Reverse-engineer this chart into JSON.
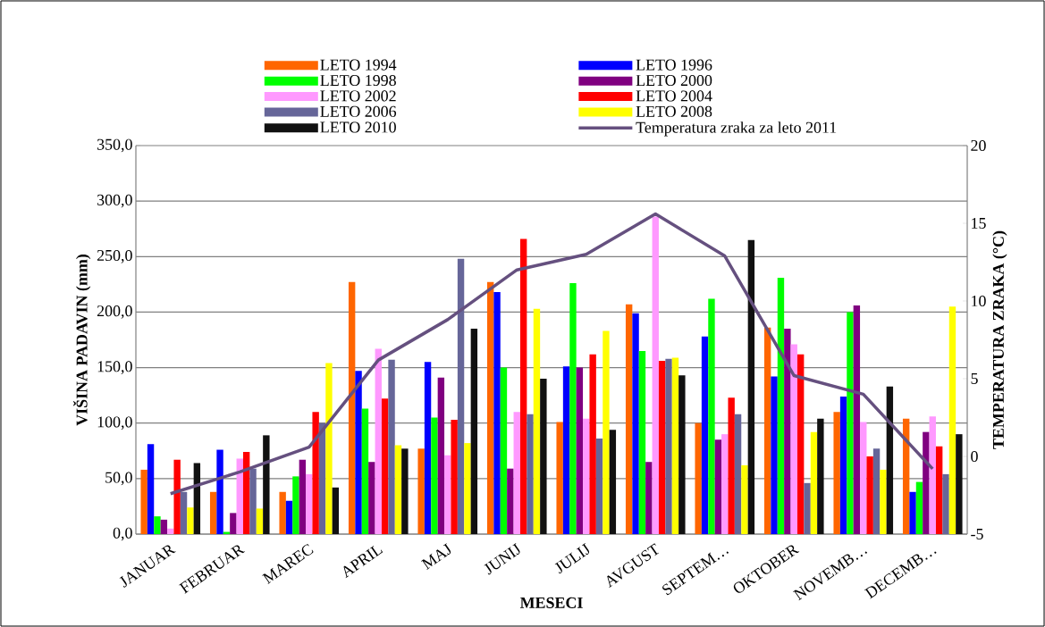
{
  "chart_data": {
    "type": "bar",
    "xlabel": "MESECI",
    "ylabel": "VIŠINA PADAVIN (mm)",
    "y2label": "TEMPERATURA ZRAKA (°C)",
    "categories": [
      "JANUAR",
      "FEBRUAR",
      "MAREC",
      "APRIL",
      "MAJ",
      "JUNIJ",
      "JULIJ",
      "AVGUST",
      "SEPTEM…",
      "OKTOBER",
      "NOVEMB…",
      "DECEMB…"
    ],
    "series": [
      {
        "name": "LETO 1994",
        "color": "#ff6600",
        "values": [
          58,
          38,
          38,
          227,
          77,
          227,
          101,
          207,
          100,
          186,
          110,
          104
        ]
      },
      {
        "name": "LETO 1996",
        "color": "#0000ff",
        "values": [
          81,
          76,
          30,
          147,
          155,
          218,
          151,
          199,
          178,
          142,
          124,
          38
        ]
      },
      {
        "name": "LETO 1998",
        "color": "#00ff00",
        "values": [
          16,
          2,
          52,
          113,
          105,
          150,
          226,
          165,
          212,
          231,
          200,
          47
        ]
      },
      {
        "name": "LETO 2000",
        "color": "#800080",
        "values": [
          13,
          19,
          67,
          65,
          141,
          59,
          150,
          65,
          85,
          185,
          206,
          92
        ]
      },
      {
        "name": "LETO 2002",
        "color": "#ff99ff",
        "values": [
          5,
          68,
          54,
          167,
          71,
          110,
          104,
          286,
          90,
          171,
          101,
          106
        ]
      },
      {
        "name": "LETO 2004",
        "color": "#ff0000",
        "values": [
          67,
          74,
          110,
          122,
          103,
          266,
          162,
          156,
          123,
          162,
          70,
          79
        ]
      },
      {
        "name": "LETO 2006",
        "color": "#666699",
        "values": [
          38,
          59,
          100,
          157,
          248,
          108,
          86,
          158,
          108,
          46,
          77,
          54
        ]
      },
      {
        "name": "LETO 2008",
        "color": "#ffff00",
        "values": [
          24,
          23,
          154,
          80,
          82,
          203,
          183,
          159,
          62,
          92,
          58,
          205
        ]
      },
      {
        "name": "LETO 2010",
        "color": "#111111",
        "values": [
          64,
          89,
          42,
          77,
          185,
          140,
          94,
          143,
          265,
          104,
          133,
          90
        ]
      },
      {
        "name": "Temperatura zraka za leto 2011",
        "type": "line",
        "axis": "y2",
        "color": "#65507f",
        "line_style": "solid",
        "values": [
          -2.4,
          -1.0,
          0.6,
          6.2,
          8.8,
          12.0,
          13.0,
          15.6,
          12.9,
          5.2,
          4.0,
          -0.8
        ]
      }
    ],
    "ylim": [
      0,
      350
    ],
    "yticks": [
      {
        "value": 0,
        "label": "0,0"
      },
      {
        "value": 50,
        "label": "50,0"
      },
      {
        "value": 100,
        "label": "100,0"
      },
      {
        "value": 150,
        "label": "150,0"
      },
      {
        "value": 200,
        "label": "200,0"
      },
      {
        "value": 250,
        "label": "250,0"
      },
      {
        "value": 300,
        "label": "300,0"
      },
      {
        "value": 350,
        "label": "350,0"
      }
    ],
    "y2lim": [
      -5,
      20
    ],
    "y2ticks": [
      -5,
      0,
      5,
      10,
      15,
      20
    ],
    "grid": "y",
    "legend": "top"
  }
}
